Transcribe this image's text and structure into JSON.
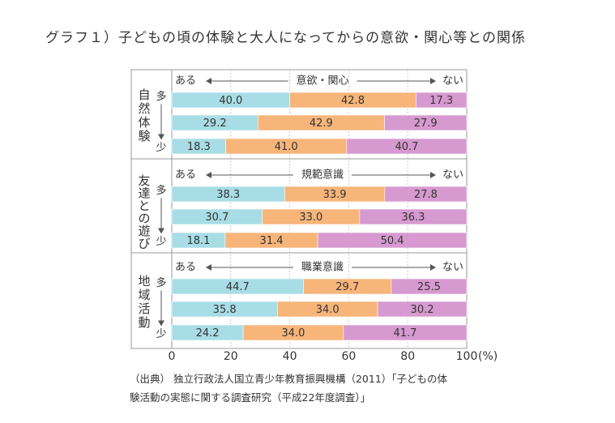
{
  "title": "グラフ１）子どもの頃の体験と大人になってからの意欲・関心等との関係",
  "source": {
    "line1": "（出典） 独立行政法人国立青少年教育振興機構（2011）「子どもの体",
    "line2": "験活動の実態に関する調査研究（平成22年度調査）」"
  },
  "chart_data": {
    "type": "bar",
    "stacked": true,
    "orientation": "horizontal",
    "xlim": [
      0,
      100
    ],
    "xticks": [
      0,
      20,
      40,
      60,
      80,
      100
    ],
    "xunit": "(%)",
    "grid": true,
    "colors": [
      "#a8dde6",
      "#f7b57a",
      "#d79ad0"
    ],
    "level_high": "多",
    "level_low": "少",
    "groups": [
      {
        "label": "自然体験",
        "header": {
          "left": "ある",
          "center": "意欲・関心",
          "right": "ない"
        },
        "rows": [
          [
            40.0,
            42.8,
            17.3
          ],
          [
            29.2,
            42.9,
            27.9
          ],
          [
            18.3,
            41.0,
            40.7
          ]
        ]
      },
      {
        "label": "友達との遊び",
        "header": {
          "left": "ある",
          "center": "規範意識",
          "right": "ない"
        },
        "rows": [
          [
            38.3,
            33.9,
            27.8
          ],
          [
            30.7,
            33.0,
            36.3
          ],
          [
            18.1,
            31.4,
            50.4
          ]
        ]
      },
      {
        "label": "地域活動",
        "header": {
          "left": "ある",
          "center": "職業意識",
          "right": "ない"
        },
        "rows": [
          [
            44.7,
            29.7,
            25.5
          ],
          [
            35.8,
            34.0,
            30.2
          ],
          [
            24.2,
            34.0,
            41.7
          ]
        ]
      }
    ]
  }
}
